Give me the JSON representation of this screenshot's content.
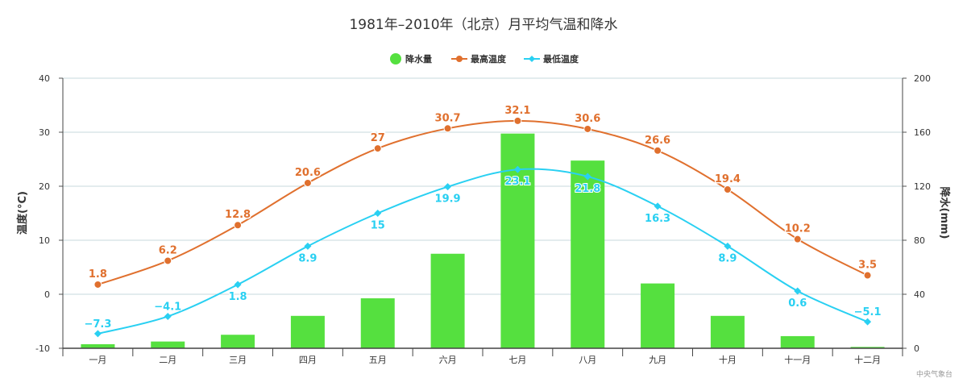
{
  "chart_data": {
    "type": "bar+line",
    "title": "1981年–2010年（北京）月平均气温和降水",
    "categories": [
      "一月",
      "二月",
      "三月",
      "四月",
      "五月",
      "六月",
      "七月",
      "八月",
      "九月",
      "十月",
      "十一月",
      "十二月"
    ],
    "series": [
      {
        "name": "降水量",
        "type": "bar",
        "axis": "right",
        "color": "#55e03f",
        "values": [
          3,
          5,
          10,
          24,
          37,
          70,
          159,
          139,
          48,
          24,
          9,
          1
        ]
      },
      {
        "name": "最高温度",
        "type": "line",
        "axis": "left",
        "color": "#e0702e",
        "values": [
          1.8,
          6.2,
          12.8,
          20.6,
          27,
          30.7,
          32.1,
          30.6,
          26.6,
          19.4,
          10.2,
          3.5
        ]
      },
      {
        "name": "最低温度",
        "type": "line",
        "axis": "left",
        "color": "#29d0f2",
        "values": [
          -7.3,
          -4.1,
          1.8,
          8.9,
          15,
          19.9,
          23.1,
          21.8,
          16.3,
          8.9,
          0.6,
          -5.1
        ]
      }
    ],
    "y_left": {
      "label": "温度(°C)",
      "range": [
        -10,
        40
      ],
      "ticks": [
        "-10",
        "0",
        "10",
        "20",
        "30",
        "40"
      ]
    },
    "y_right": {
      "label": "降水(mm)",
      "range": [
        0,
        200
      ],
      "ticks": [
        "0",
        "40",
        "80",
        "120",
        "160",
        "200"
      ]
    },
    "legend": [
      "降水量",
      "最高温度",
      "最低温度"
    ],
    "legend_position": "top-center",
    "grid": true,
    "credits": "中央气象台"
  }
}
